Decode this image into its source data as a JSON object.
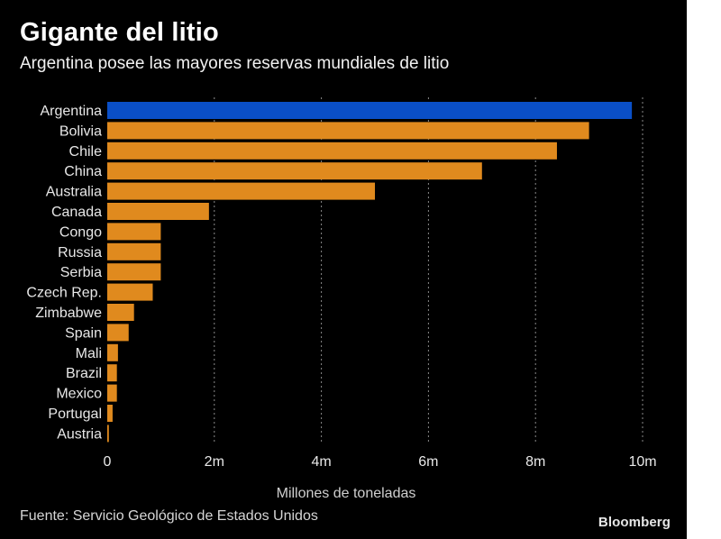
{
  "header": {
    "title": "Gigante del litio",
    "subtitle": "Argentina posee las mayores reservas mundiales de litio"
  },
  "footer": {
    "source": "Fuente: Servicio Geológico de Estados Unidos",
    "brand": "Bloomberg"
  },
  "colors": {
    "background": "#000000",
    "highlight_bar": "#0a4fc7",
    "bar": "#e08a1e",
    "grid": "#8a8a8a",
    "text": "#e8e8e8"
  },
  "chart_data": {
    "type": "bar",
    "orientation": "horizontal",
    "title": "Gigante del litio",
    "subtitle": "Argentina posee las mayores reservas mundiales de litio",
    "xlabel": "Millones de toneladas",
    "ylabel": "",
    "xlim": [
      0,
      10
    ],
    "grid": "vertical dotted",
    "highlight": "Argentina",
    "tick_values": [
      0,
      2,
      4,
      6,
      8,
      10
    ],
    "tick_labels": [
      "0",
      "2m",
      "4m",
      "6m",
      "8m",
      "10m"
    ],
    "categories": [
      "Argentina",
      "Bolivia",
      "Chile",
      "China",
      "Australia",
      "Canada",
      "Congo",
      "Russia",
      "Serbia",
      "Czech Rep.",
      "Zimbabwe",
      "Spain",
      "Mali",
      "Brazil",
      "Mexico",
      "Portugal",
      "Austria"
    ],
    "values": [
      9.8,
      9.0,
      8.4,
      7.0,
      5.0,
      1.9,
      1.0,
      1.0,
      1.0,
      0.85,
      0.5,
      0.4,
      0.2,
      0.18,
      0.18,
      0.1,
      0.03
    ]
  }
}
